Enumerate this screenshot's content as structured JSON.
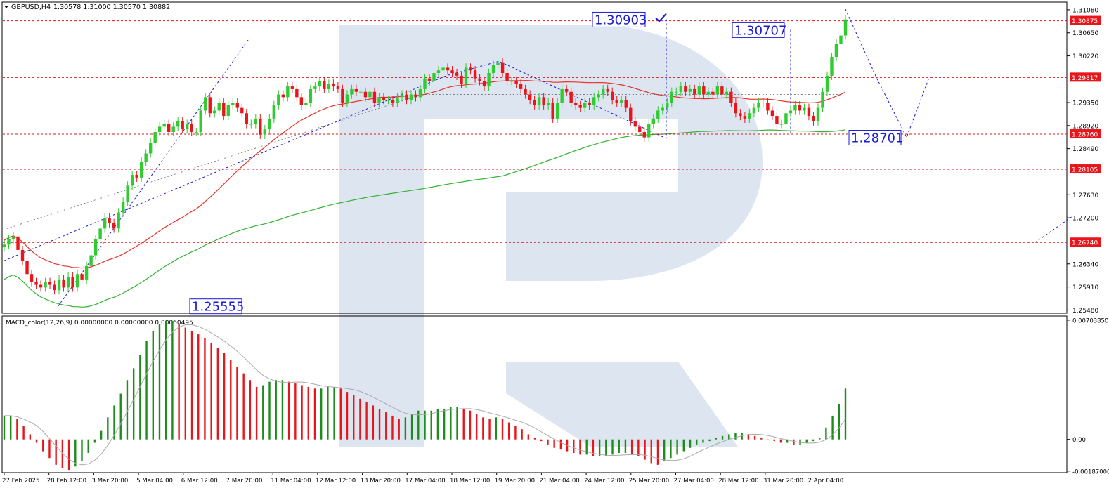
{
  "chart_data": {
    "type": "candlestick",
    "header": {
      "symbol": "GBPUSD,H4",
      "ohlc": "1.30578 1.31000 1.30570 1.30882"
    },
    "price_axis": {
      "ylim": [
        1.2542,
        1.3121
      ],
      "ticks": [
        "1.31080",
        "1.30650",
        "1.30220",
        "1.29350",
        "1.28920",
        "1.28490",
        "1.27630",
        "1.27200",
        "1.26340",
        "1.25910",
        "1.25480"
      ]
    },
    "levels": [
      {
        "label": "1.30875",
        "value": 1.30875
      },
      {
        "label": "1.29817",
        "value": 1.29817
      },
      {
        "label": "1.28760",
        "value": 1.2876
      },
      {
        "label": "1.28105",
        "value": 1.28105
      },
      {
        "label": "1.26740",
        "value": 1.2674
      }
    ],
    "annotations": [
      {
        "text": "1.30903",
        "value": 1.30903
      },
      {
        "text": "1.30707",
        "value": 1.30707
      },
      {
        "text": "1.28701",
        "value": 1.28701
      },
      {
        "text": "1.25555",
        "value": 1.25555
      }
    ],
    "time_axis": {
      "labels": [
        "27 Feb 2025",
        "28 Feb 12:00",
        "3 Mar 20:00",
        "5 Mar 04:00",
        "6 Mar 12:00",
        "7 Mar 20:00",
        "11 Mar 04:00",
        "12 Mar 12:00",
        "13 Mar 20:00",
        "17 Mar 04:00",
        "18 Mar 12:00",
        "19 Mar 20:00",
        "21 Mar 04:00",
        "24 Mar 12:00",
        "25 Mar 20:00",
        "27 Mar 04:00",
        "28 Mar 12:00",
        "31 Mar 20:00",
        "2 Apr 04:00"
      ]
    },
    "series": [
      {
        "values": [
          1.267,
          1.268,
          1.2685,
          1.266,
          1.264,
          1.2615,
          1.26,
          1.2595,
          1.259,
          1.26,
          1.2595,
          1.2585,
          1.2605,
          1.259,
          1.261,
          1.259,
          1.2615,
          1.2605,
          1.263,
          1.265,
          1.268,
          1.27,
          1.272,
          1.271,
          1.27,
          1.273,
          1.275,
          1.278,
          1.28,
          1.2795,
          1.2825,
          1.284,
          1.286,
          1.288,
          1.289,
          1.2895,
          1.288,
          1.289,
          1.29,
          1.2885,
          1.2895,
          1.288,
          1.288,
          1.292,
          1.2945,
          1.2915,
          1.292,
          1.2935,
          1.291,
          1.293,
          1.2935,
          1.2925,
          1.2915,
          1.2895,
          1.2895,
          1.2905,
          1.2875,
          1.2885,
          1.2905,
          1.293,
          1.295,
          1.2945,
          1.2965,
          1.296,
          1.2945,
          1.293,
          1.2935,
          1.296,
          1.2965,
          1.2975,
          1.296,
          1.297,
          1.2965,
          1.296,
          1.2935,
          1.295,
          1.296,
          1.2955,
          1.2955,
          1.2945,
          1.2955,
          1.2935,
          1.2945,
          1.294,
          1.294,
          1.2935,
          1.2945,
          1.295,
          1.294,
          1.295,
          1.2945,
          1.296,
          1.298,
          1.2975,
          1.299,
          1.2995,
          1.3,
          1.2995,
          1.299,
          1.2985,
          1.297,
          1.3,
          1.2995,
          1.298,
          1.2975,
          1.2965,
          1.299,
          1.3005,
          1.301,
          1.299,
          1.2975,
          1.2975,
          1.297,
          1.296,
          1.295,
          1.294,
          1.293,
          1.2945,
          1.293,
          1.2935,
          1.2905,
          1.2935,
          1.296,
          1.2955,
          1.2935,
          1.293,
          1.2925,
          1.2935,
          1.293,
          1.2945,
          1.295,
          1.296,
          1.2955,
          1.294,
          1.2935,
          1.294,
          1.2925,
          1.29,
          1.289,
          1.288,
          1.287,
          1.2895,
          1.2905,
          1.292,
          1.2925,
          1.2935,
          1.2955,
          1.2955,
          1.2965,
          1.2955,
          1.296,
          1.295,
          1.2965,
          1.295,
          1.2955,
          1.295,
          1.2965,
          1.295,
          1.2955,
          1.2935,
          1.2915,
          1.291,
          1.2905,
          1.2915,
          1.2925,
          1.2935,
          1.2935,
          1.292,
          1.291,
          1.2895,
          1.2895,
          1.2915,
          1.292,
          1.293,
          1.292,
          1.2925,
          1.291,
          1.29,
          1.2925,
          1.2955,
          1.2985,
          1.302,
          1.3045,
          1.306,
          1.309
        ]
      },
      {
        "name": "MACD_color(12,26,9) 0.00000000 0.00000000 0.00060495",
        "axis": {
          "ylim": [
            -0.00192,
            0.0072
          ],
          "ticks": [
            "0.00703850",
            "0.00",
            "-0.00187000"
          ]
        },
        "values": [
          0.0014,
          0.0014,
          0.0012,
          0.0008,
          0.0003,
          -0.0002,
          -0.0007,
          -0.0011,
          -0.0015,
          -0.0017,
          -0.0018,
          -0.0016,
          -0.0013,
          -0.0008,
          -0.0002,
          0.0005,
          0.0013,
          0.002,
          0.0027,
          0.0035,
          0.0042,
          0.005,
          0.0058,
          0.0064,
          0.0068,
          0.007,
          0.007,
          0.0068,
          0.0066,
          0.0064,
          0.0062,
          0.006,
          0.0057,
          0.0054,
          0.0051,
          0.0047,
          0.0043,
          0.0039,
          0.0035,
          0.0031,
          0.0032,
          0.0034,
          0.0035,
          0.0035,
          0.0034,
          0.0033,
          0.0032,
          0.0031,
          0.003,
          0.003,
          0.0031,
          0.0031,
          0.003,
          0.0028,
          0.0026,
          0.0024,
          0.0022,
          0.002,
          0.0018,
          0.0016,
          0.0014,
          0.0012,
          0.0013,
          0.0015,
          0.0017,
          0.0017,
          0.0017,
          0.0018,
          0.0018,
          0.0019,
          0.0019,
          0.0018,
          0.0017,
          0.0015,
          0.0013,
          0.0012,
          0.0013,
          0.0012,
          0.001,
          0.0008,
          0.0006,
          0.0003,
          0.0001,
          -0.0001,
          -0.0003,
          -0.0005,
          -0.0006,
          -0.0007,
          -0.0008,
          -0.0009,
          -0.0009,
          -0.001,
          -0.001,
          -0.001,
          -0.0009,
          -0.0008,
          -0.0008,
          -0.0009,
          -0.001,
          -0.0012,
          -0.0014,
          -0.0015,
          -0.0013,
          -0.0011,
          -0.0009,
          -0.0007,
          -0.0005,
          -0.0003,
          -0.0002,
          -0.0001,
          0.0001,
          0.0002,
          0.0003,
          0.0004,
          0.0004,
          0.0003,
          0.0002,
          0.0001,
          0.0,
          -0.0001,
          -0.0002,
          -0.0002,
          -0.0003,
          -0.0003,
          -0.0002,
          -0.0001,
          0.0001,
          0.0007,
          0.0014,
          0.0021,
          0.003
        ]
      }
    ]
  }
}
